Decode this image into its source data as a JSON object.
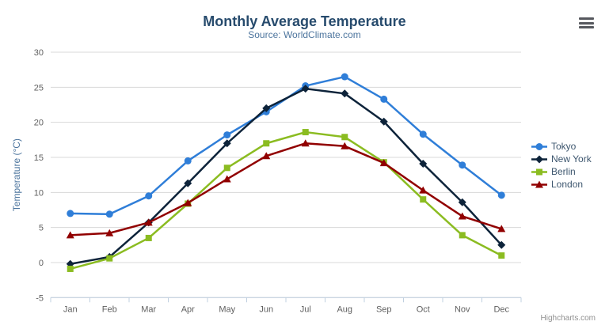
{
  "header": {
    "title": "Monthly Average Temperature",
    "subtitle": "Source: WorldClimate.com"
  },
  "credits": {
    "label": "Highcharts.com"
  },
  "colors": {
    "title": "#274b6d",
    "subtitle": "#4d759e",
    "axis_label": "#606060",
    "axis_title": "#4d759e",
    "grid_line": "#d8d8d8",
    "axis_line": "#c0d0e0",
    "legend_text": "#3e576f",
    "credits_text": "#909090",
    "menu_icon": "#56585e"
  },
  "chart_data": {
    "type": "line",
    "title": "Monthly Average Temperature",
    "subtitle": "Source: WorldClimate.com",
    "categories": [
      "Jan",
      "Feb",
      "Mar",
      "Apr",
      "May",
      "Jun",
      "Jul",
      "Aug",
      "Sep",
      "Oct",
      "Nov",
      "Dec"
    ],
    "xlabel": "",
    "ylabel": "Temperature (°C)",
    "ylim": [
      -5,
      30
    ],
    "ytick_interval": 5,
    "yticks": [
      -5,
      0,
      5,
      10,
      15,
      20,
      25,
      30
    ],
    "grid": true,
    "legend_position": "right",
    "series": [
      {
        "name": "Tokyo",
        "color": "#2f7ed8",
        "marker": "circle",
        "values": [
          7.0,
          6.9,
          9.5,
          14.5,
          18.2,
          21.5,
          25.2,
          26.5,
          23.3,
          18.3,
          13.9,
          9.6
        ]
      },
      {
        "name": "New York",
        "color": "#0d233a",
        "marker": "diamond",
        "values": [
          -0.2,
          0.8,
          5.7,
          11.3,
          17.0,
          22.0,
          24.8,
          24.1,
          20.1,
          14.1,
          8.6,
          2.5
        ]
      },
      {
        "name": "Berlin",
        "color": "#8bbc21",
        "marker": "square",
        "values": [
          -0.9,
          0.6,
          3.5,
          8.4,
          13.5,
          17.0,
          18.6,
          17.9,
          14.3,
          9.0,
          3.9,
          1.0
        ]
      },
      {
        "name": "London",
        "color": "#910000",
        "marker": "triangle",
        "values": [
          3.9,
          4.2,
          5.7,
          8.5,
          11.9,
          15.2,
          17.0,
          16.6,
          14.2,
          10.3,
          6.6,
          4.8
        ]
      }
    ]
  }
}
